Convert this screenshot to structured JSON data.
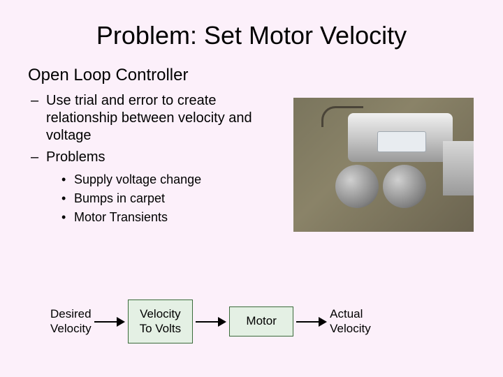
{
  "title": "Problem: Set Motor Velocity",
  "subtitle": "Open Loop Controller",
  "bullets": {
    "b0": "Use trial and error to create relationship between velocity and voltage",
    "b1": "Problems",
    "sub0": "Supply voltage change",
    "sub1": "Bumps in carpet",
    "sub2": "Motor Transients"
  },
  "flow": {
    "input_l1": "Desired",
    "input_l2": "Velocity",
    "box1_l1": "Velocity",
    "box1_l2": "To Volts",
    "box2": "Motor",
    "output_l1": "Actual",
    "output_l2": "Velocity"
  },
  "colors": {
    "slide_bg": "#fcf0fa",
    "box_fill": "#e4f0e4",
    "box_border": "#3b6b3b",
    "text": "#000000"
  }
}
